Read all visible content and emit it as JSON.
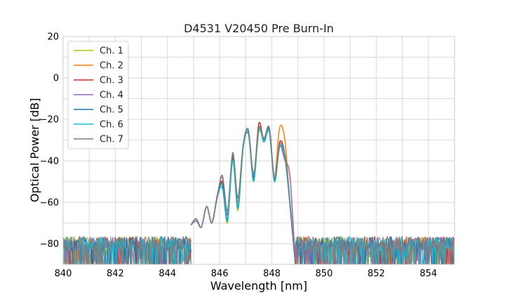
{
  "chart_data": {
    "type": "line",
    "title": "D4531 V20450 Pre Burn-In",
    "xlabel": "Wavelength [nm]",
    "ylabel": "Optical Power [dB]",
    "xlim": [
      840,
      855
    ],
    "ylim": [
      -90,
      20
    ],
    "x_ticks": [
      840,
      842,
      844,
      846,
      848,
      850,
      852,
      854
    ],
    "x_tick_labels": [
      "840",
      "842",
      "844",
      "846",
      "848",
      "850",
      "852",
      "854"
    ],
    "y_ticks": [
      20,
      0,
      -20,
      -40,
      -60,
      -80
    ],
    "y_tick_labels": [
      "20",
      "0",
      "−20",
      "−40",
      "−60",
      "−80"
    ],
    "grid": true,
    "legend_position": "top-left",
    "noise_floor_db": -80,
    "series": [
      {
        "name": "Ch. 1",
        "color": "#bcbd22",
        "x": [
          844.9,
          845.1,
          845.3,
          845.5,
          845.7,
          845.9,
          846.1,
          846.3,
          846.5,
          846.7,
          846.9,
          847.1,
          847.3,
          847.5,
          847.7,
          847.9,
          848.1,
          848.3,
          848.5,
          848.7,
          848.9
        ],
        "y": [
          -71,
          -68,
          -72,
          -62,
          -70,
          -58,
          -52,
          -70,
          -40,
          -64,
          -34,
          -27,
          -50,
          -26,
          -31,
          -25,
          -50,
          -33,
          -38,
          -62,
          -90
        ]
      },
      {
        "name": "Ch. 2",
        "color": "#ff7f0e",
        "x": [
          844.9,
          845.1,
          845.3,
          845.5,
          845.7,
          845.9,
          846.1,
          846.3,
          846.5,
          846.7,
          846.9,
          847.1,
          847.3,
          847.5,
          847.7,
          847.9,
          848.1,
          848.3,
          848.5,
          848.7,
          848.9
        ],
        "y": [
          -71,
          -68,
          -72,
          -62,
          -70,
          -58,
          -50,
          -66,
          -39,
          -60,
          -33,
          -26,
          -48,
          -24,
          -30,
          -24,
          -47,
          -24,
          -30,
          -62,
          -90
        ]
      },
      {
        "name": "Ch. 3",
        "color": "#d62728",
        "x": [
          844.9,
          845.1,
          845.3,
          845.5,
          845.7,
          845.9,
          846.1,
          846.3,
          846.5,
          846.7,
          846.9,
          847.1,
          847.3,
          847.5,
          847.7,
          847.9,
          848.1,
          848.3,
          848.5,
          848.7,
          848.9
        ],
        "y": [
          -71,
          -68,
          -72,
          -62,
          -70,
          -58,
          -50,
          -66,
          -38,
          -58,
          -33,
          -26,
          -48,
          -22,
          -30,
          -24,
          -49,
          -31,
          -37,
          -62,
          -90
        ]
      },
      {
        "name": "Ch. 4",
        "color": "#9467bd",
        "x": [
          844.9,
          845.1,
          845.3,
          845.5,
          845.7,
          845.9,
          846.1,
          846.3,
          846.5,
          846.7,
          846.9,
          847.1,
          847.3,
          847.5,
          847.7,
          847.9,
          848.1,
          848.3,
          848.5,
          848.7,
          848.9
        ],
        "y": [
          -71,
          -69,
          -72,
          -62,
          -70,
          -57,
          -48,
          -66,
          -37,
          -58,
          -33,
          -27,
          -47,
          -25,
          -30,
          -25,
          -50,
          -33,
          -40,
          -48,
          -90
        ]
      },
      {
        "name": "Ch. 5",
        "color": "#1f77b4",
        "x": [
          844.9,
          845.1,
          845.3,
          845.5,
          845.7,
          845.9,
          846.1,
          846.3,
          846.5,
          846.7,
          846.9,
          847.1,
          847.3,
          847.5,
          847.7,
          847.9,
          848.1,
          848.3,
          848.5,
          848.7,
          848.9
        ],
        "y": [
          -71,
          -68,
          -72,
          -62,
          -70,
          -58,
          -51,
          -68,
          -39,
          -62,
          -33,
          -26,
          -49,
          -25,
          -30,
          -25,
          -50,
          -33,
          -38,
          -62,
          -90
        ]
      },
      {
        "name": "Ch. 6",
        "color": "#17becf",
        "x": [
          844.9,
          845.1,
          845.3,
          845.5,
          845.7,
          845.9,
          846.1,
          846.3,
          846.5,
          846.7,
          846.9,
          847.1,
          847.3,
          847.5,
          847.7,
          847.9,
          848.1,
          848.3,
          848.5,
          848.7,
          848.9
        ],
        "y": [
          -71,
          -68,
          -72,
          -62,
          -70,
          -58,
          -53,
          -69,
          -40,
          -63,
          -34,
          -26,
          -50,
          -25,
          -31,
          -26,
          -50,
          -33,
          -39,
          -62,
          -90
        ]
      },
      {
        "name": "Ch. 7",
        "color": "#7f7f7f",
        "x": [
          844.9,
          845.1,
          845.3,
          845.5,
          845.7,
          845.9,
          846.1,
          846.3,
          846.5,
          846.7,
          846.9,
          847.1,
          847.3,
          847.5,
          847.7,
          847.9,
          848.1,
          848.3,
          848.5,
          848.7,
          848.9
        ],
        "y": [
          -71,
          -68,
          -72,
          -62,
          -70,
          -58,
          -47,
          -64,
          -36,
          -58,
          -32,
          -25,
          -46,
          -24,
          -29,
          -24,
          -48,
          -32,
          -37,
          -60,
          -90
        ]
      }
    ]
  }
}
